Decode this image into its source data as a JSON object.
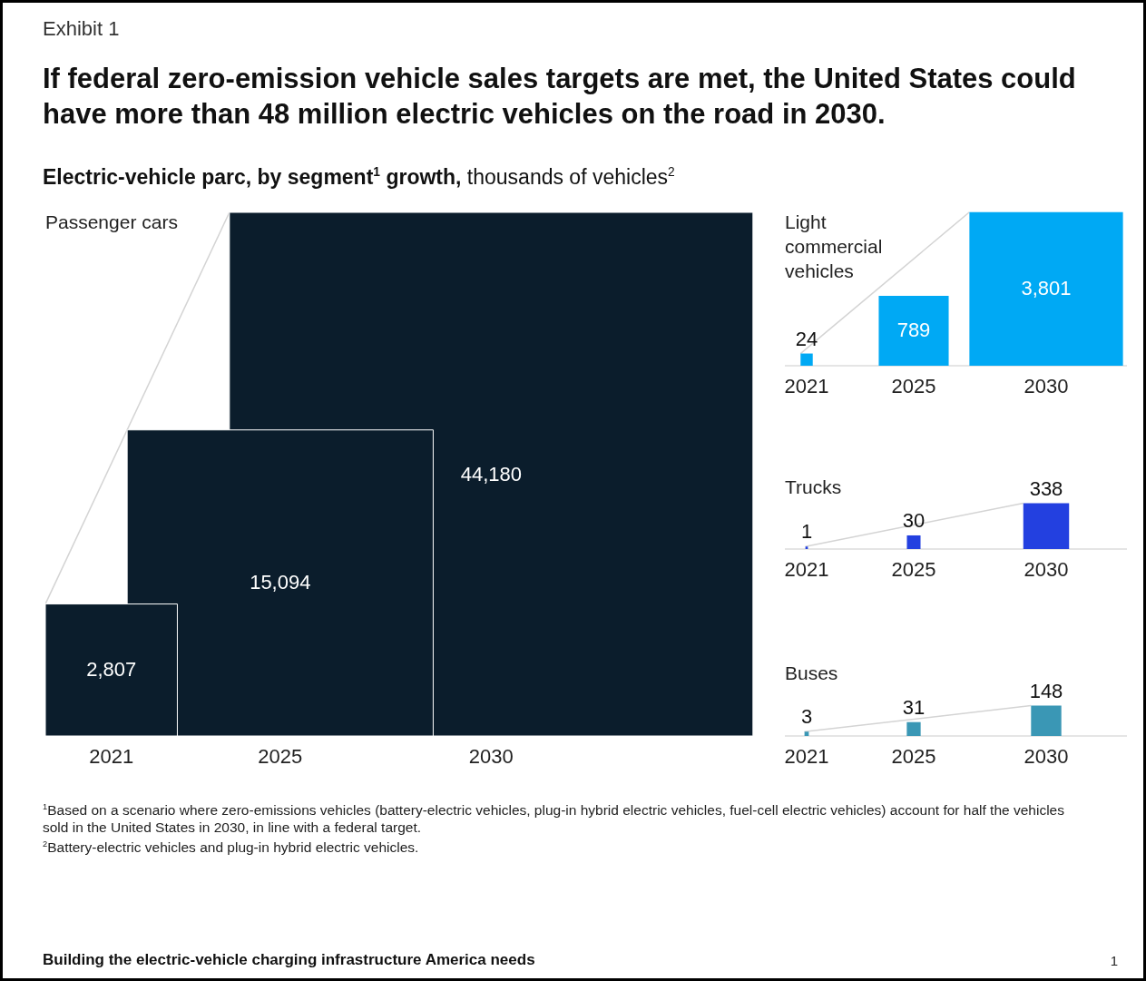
{
  "chart_data": [
    {
      "type": "other",
      "title": "If federal zero-emission vehicle sales targets are met, the United States could have more than 48 million electric vehicles on the road in 2030.",
      "subtitle": "Electric-vehicle parc, by segment$^{1}$ growth, thousands of vehicles$^{2}$",
      "annotations": [
        "Exhibit 1",
        "$^{1}$Based on a scenario where zero-emissions vehicles (battery-electric vehicles, plug-in hybrid electric vehicles, fuel-cell electric vehicles) account for half the vehicles sold in the United States in 2030, in line with a federal target.",
        "$^{2}$Battery-electric vehicles and plug-in hybrid electric vehicles.",
        "Building the electric-vehicle charging infrastructure America needs",
        "1"
      ]
    },
    {
      "type": "other",
      "title": "Passenger cars",
      "categories": [
        "2021",
        "2025",
        "2030"
      ],
      "values": [
        2807,
        15094,
        44180
      ],
      "value_labels": [
        "2,807",
        "15,094",
        "44,180"
      ],
      "color": "#0b1d2c"
    },
    {
      "type": "other",
      "title": "Light commercial vehicles",
      "categories": [
        "2021",
        "2025",
        "2030"
      ],
      "values": [
        24,
        789,
        3801
      ],
      "value_labels": [
        "24",
        "789",
        "3,801"
      ],
      "color": "#00a9f4"
    },
    {
      "type": "other",
      "title": "Trucks",
      "categories": [
        "2021",
        "2025",
        "2030"
      ],
      "values": [
        1,
        30,
        338
      ],
      "color": "#2340e0",
      "data_labels": true
    },
    {
      "type": "other",
      "title": "Buses",
      "categories": [
        "2021",
        "2025",
        "2030"
      ],
      "values": [
        3,
        31,
        148
      ],
      "color": "#3a97b5",
      "data_labels": true
    }
  ]
}
